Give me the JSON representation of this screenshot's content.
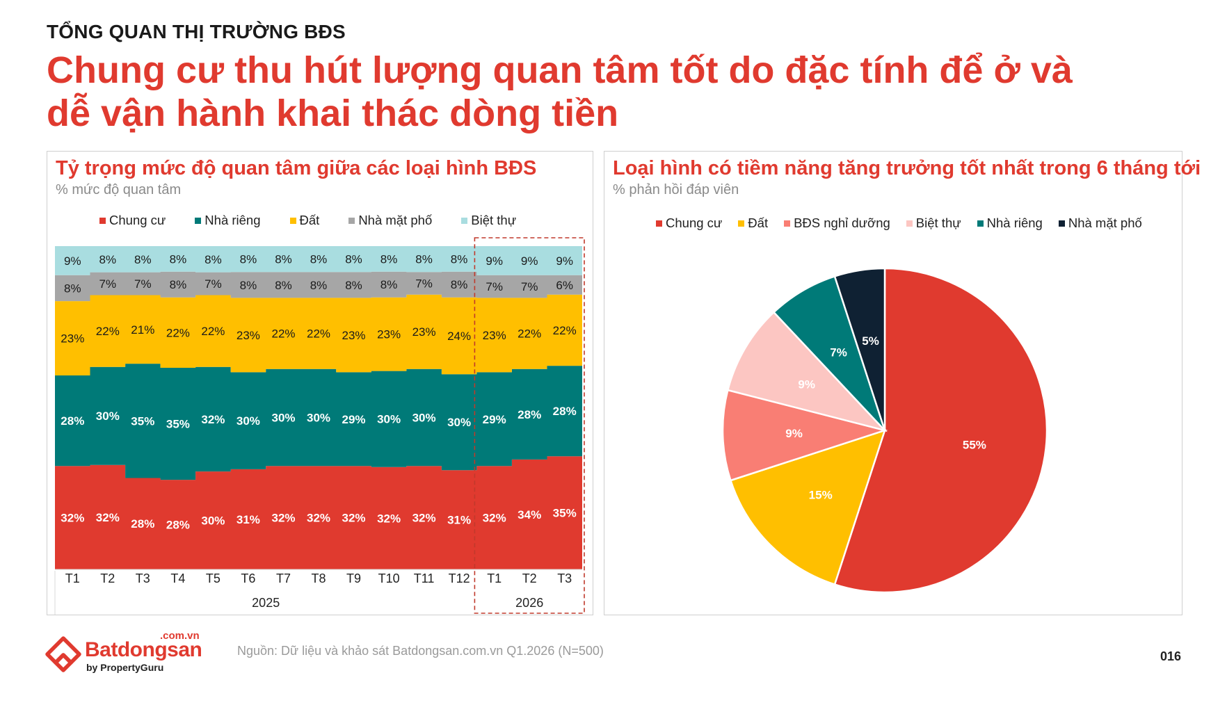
{
  "header": {
    "eyebrow": "TỔNG QUAN THỊ TRƯỜNG BĐS",
    "headline_line1": "Chung cư thu hút lượng quan tâm tốt do đặc tính để ở và",
    "headline_line2": "dễ vận hành khai thác dòng tiền"
  },
  "left_panel": {
    "title": "Tỷ trọng mức độ quan tâm giữa các loại hình BĐS",
    "subtitle": "% mức độ quan tâm"
  },
  "right_panel": {
    "title": "Loại hình có tiềm năng tăng trưởng tốt nhất trong 6 tháng tới",
    "subtitle": "% phản hồi đáp viên"
  },
  "chart_data": [
    {
      "type": "area",
      "stacked": true,
      "normalized_percent": true,
      "categories": [
        "T1",
        "T2",
        "T3",
        "T4",
        "T5",
        "T6",
        "T7",
        "T8",
        "T9",
        "T10",
        "T11",
        "T12",
        "T1",
        "T2",
        "T3"
      ],
      "groups": [
        {
          "label": "2025",
          "from": 0,
          "to": 11
        },
        {
          "label": "2026",
          "from": 12,
          "to": 14,
          "highlighted": true
        }
      ],
      "legend_position": "top",
      "series": [
        {
          "name": "Chung cư",
          "color": "#e03a2f",
          "values": [
            32,
            32,
            28,
            28,
            30,
            31,
            32,
            32,
            32,
            32,
            32,
            31,
            32,
            34,
            35
          ]
        },
        {
          "name": "Nhà riêng",
          "color": "#007a78",
          "values": [
            28,
            30,
            35,
            35,
            32,
            30,
            30,
            30,
            29,
            30,
            30,
            30,
            29,
            28,
            28
          ]
        },
        {
          "name": "Đất",
          "color": "#ffbf00",
          "values": [
            23,
            22,
            21,
            22,
            22,
            23,
            22,
            22,
            23,
            23,
            23,
            24,
            23,
            22,
            22
          ]
        },
        {
          "name": "Nhà mặt phố",
          "color": "#a6a6a6",
          "values": [
            8,
            7,
            7,
            8,
            7,
            8,
            8,
            8,
            8,
            8,
            7,
            8,
            7,
            7,
            6
          ]
        },
        {
          "name": "Biệt thự",
          "color": "#a9dde0",
          "values": [
            9,
            8,
            8,
            8,
            8,
            8,
            8,
            8,
            8,
            8,
            8,
            8,
            9,
            9,
            9
          ]
        }
      ]
    },
    {
      "type": "pie",
      "legend_position": "top",
      "slices": [
        {
          "name": "Chung cư",
          "value": 55,
          "label": "55%",
          "color": "#e03a2f"
        },
        {
          "name": "Đất",
          "value": 15,
          "label": "15%",
          "color": "#ffbf00"
        },
        {
          "name": "BĐS nghỉ dưỡng",
          "value": 9,
          "label": "9%",
          "color": "#f97e74"
        },
        {
          "name": "Biệt thự",
          "value": 9,
          "label": "9%",
          "color": "#fcc6c2"
        },
        {
          "name": "Nhà riêng",
          "value": 7,
          "label": "7%",
          "color": "#007a78"
        },
        {
          "name": "Nhà mặt phố",
          "value": 5,
          "label": "5%",
          "color": "#0f2133"
        }
      ]
    }
  ],
  "footer": {
    "logo_domain": ".com.vn",
    "logo_name": "Batdongsan",
    "logo_by": "by PropertyGuru",
    "logo_icon": "batdongsan-logo-icon",
    "source": "Nguồn: Dữ liệu và khảo sát Batdongsan.com.vn Q1.2026 (N=500)",
    "page_number": "016"
  }
}
